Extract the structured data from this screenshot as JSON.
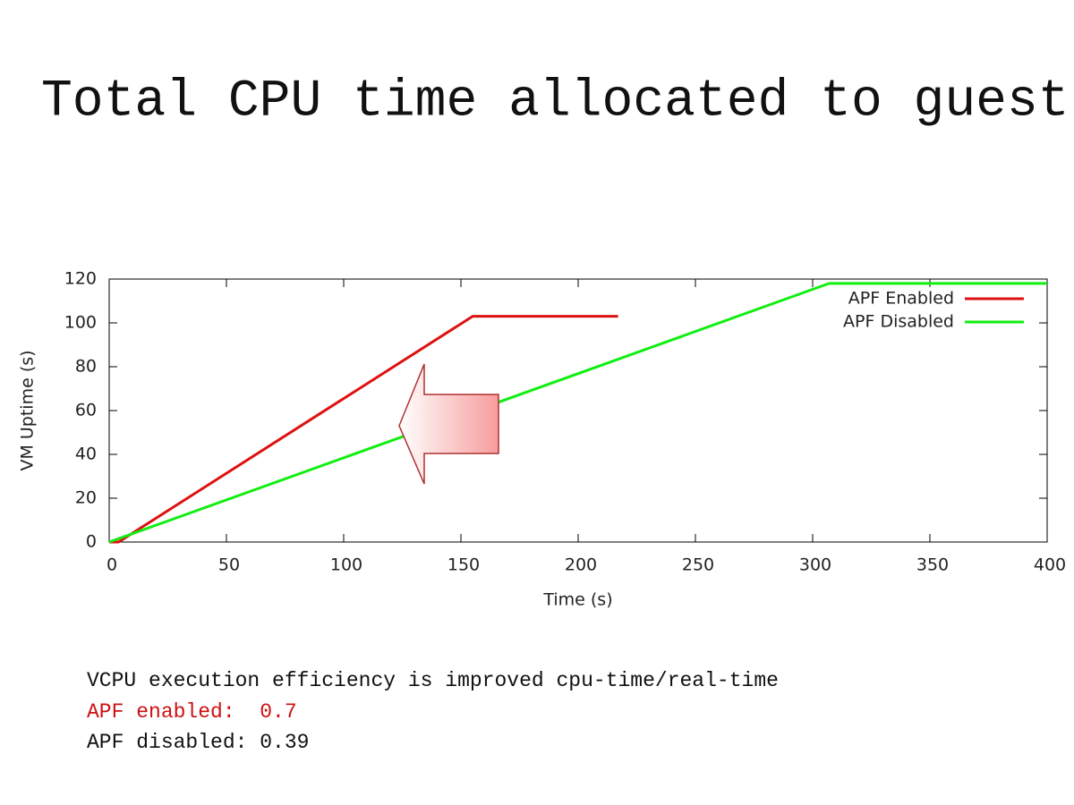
{
  "chart_data": {
    "type": "line",
    "title": "Total CPU time allocated to guest VM",
    "x_label": "Time (s)",
    "y_label": "VM Uptime (s)",
    "xlim": [
      0,
      400
    ],
    "xticks": [
      0,
      50,
      100,
      150,
      200,
      250,
      300,
      350,
      400
    ],
    "ylim": [
      0,
      120
    ],
    "yticks": [
      0,
      20,
      40,
      60,
      80,
      100,
      120
    ],
    "grid": false,
    "legend": "top-right",
    "series": [
      {
        "name": "APF Enabled",
        "color": "#dd1111",
        "x": [
          0,
          4,
          155,
          217
        ],
        "values": [
          0,
          0,
          103,
          103
        ]
      },
      {
        "name": "APF Disabled",
        "color": "#11ee11",
        "x": [
          0,
          307,
          400
        ],
        "values": [
          0,
          118,
          118
        ]
      }
    ]
  },
  "notes": [
    "VCPU execution efficiency is improved cpu-time/real-time",
    "APF enabled:  0.7",
    "APF disabled: 0.39"
  ]
}
